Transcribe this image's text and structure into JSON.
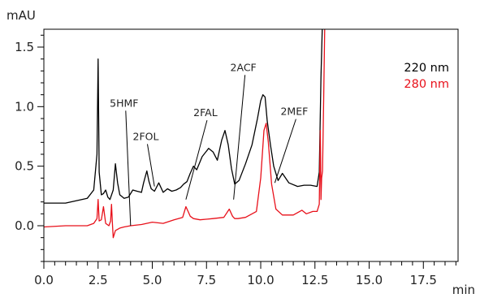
{
  "chart_data": {
    "type": "line",
    "title": "",
    "xlabel": "min",
    "ylabel": "mAU",
    "xlim": [
      0,
      19.1
    ],
    "ylim": [
      -0.3,
      1.65
    ],
    "x_ticks": [
      0.0,
      2.5,
      5.0,
      7.5,
      10.0,
      12.5,
      15.0,
      17.5
    ],
    "x_tick_labels": [
      "0.0",
      "2.5",
      "5.0",
      "7.5",
      "10.0",
      "12.5",
      "15.0",
      "17.5"
    ],
    "x_minor_step": 0.5,
    "y_ticks": [
      0.0,
      0.5,
      1.0,
      1.5
    ],
    "y_tick_labels": [
      "0.0",
      "0.5",
      "1.0",
      "1.5"
    ],
    "y_minor_step": 0.1,
    "grid": false,
    "legend_position": "top-right",
    "series": [
      {
        "name": "220 nm",
        "color": "#000000",
        "x": [
          0.0,
          1.0,
          2.0,
          2.3,
          2.45,
          2.5,
          2.55,
          2.65,
          2.75,
          2.85,
          2.95,
          3.05,
          3.2,
          3.3,
          3.4,
          3.5,
          3.7,
          3.9,
          4.1,
          4.3,
          4.5,
          4.6,
          4.75,
          4.85,
          4.95,
          5.1,
          5.3,
          5.5,
          5.7,
          5.9,
          6.1,
          6.3,
          6.45,
          6.6,
          6.75,
          6.9,
          7.05,
          7.3,
          7.6,
          7.8,
          8.0,
          8.2,
          8.35,
          8.5,
          8.65,
          8.8,
          9.0,
          9.3,
          9.6,
          9.85,
          10.0,
          10.1,
          10.2,
          10.3,
          10.45,
          10.6,
          10.8,
          11.0,
          11.3,
          11.7,
          12.0,
          12.3,
          12.6,
          12.7,
          12.78,
          12.84,
          12.9,
          12.95
        ],
        "y": [
          0.19,
          0.19,
          0.23,
          0.3,
          0.6,
          1.4,
          0.45,
          0.26,
          0.27,
          0.3,
          0.24,
          0.22,
          0.3,
          0.52,
          0.36,
          0.26,
          0.23,
          0.24,
          0.3,
          0.29,
          0.28,
          0.36,
          0.46,
          0.37,
          0.31,
          0.29,
          0.36,
          0.28,
          0.31,
          0.29,
          0.3,
          0.32,
          0.35,
          0.37,
          0.44,
          0.5,
          0.47,
          0.58,
          0.65,
          0.62,
          0.55,
          0.72,
          0.8,
          0.68,
          0.48,
          0.35,
          0.38,
          0.52,
          0.68,
          0.9,
          1.05,
          1.1,
          1.08,
          0.88,
          0.68,
          0.5,
          0.38,
          0.44,
          0.36,
          0.33,
          0.34,
          0.34,
          0.33,
          0.45,
          1.25,
          1.66,
          1.66,
          1.66
        ]
      },
      {
        "name": "280 nm",
        "color": "#e8101a",
        "x": [
          0.0,
          1.0,
          2.0,
          2.3,
          2.45,
          2.5,
          2.55,
          2.65,
          2.75,
          2.85,
          3.0,
          3.08,
          3.12,
          3.16,
          3.2,
          3.3,
          3.5,
          3.7,
          4.0,
          4.5,
          5.0,
          5.5,
          6.0,
          6.4,
          6.55,
          6.65,
          6.75,
          6.9,
          7.2,
          7.8,
          8.3,
          8.55,
          8.7,
          8.8,
          8.95,
          9.3,
          9.8,
          10.0,
          10.15,
          10.25,
          10.35,
          10.5,
          10.7,
          11.0,
          11.5,
          11.9,
          12.1,
          12.4,
          12.6,
          12.7,
          12.75,
          12.78,
          12.81,
          12.85,
          12.9,
          12.95,
          13.05,
          13.15
        ],
        "y": [
          -0.01,
          0.0,
          0.0,
          0.02,
          0.06,
          0.22,
          0.04,
          0.05,
          0.16,
          0.02,
          0.0,
          0.04,
          0.18,
          0.02,
          -0.1,
          -0.04,
          -0.02,
          -0.01,
          0.0,
          0.01,
          0.03,
          0.02,
          0.05,
          0.07,
          0.16,
          0.12,
          0.08,
          0.06,
          0.05,
          0.06,
          0.07,
          0.14,
          0.08,
          0.06,
          0.06,
          0.07,
          0.12,
          0.4,
          0.8,
          0.86,
          0.7,
          0.35,
          0.14,
          0.09,
          0.09,
          0.13,
          0.1,
          0.12,
          0.12,
          0.18,
          0.8,
          0.22,
          0.4,
          0.46,
          1.05,
          1.66,
          1.66,
          1.66
        ]
      }
    ],
    "annotations": [
      {
        "text": "5HMF",
        "x": 4.0,
        "y": 0.0
      },
      {
        "text": "2FOL",
        "x": 5.1,
        "y": 0.33
      },
      {
        "text": "2FAL",
        "x": 6.55,
        "y": 0.22
      },
      {
        "text": "2ACF",
        "x": 8.75,
        "y": 0.22
      },
      {
        "text": "2MEF",
        "x": 10.65,
        "y": 0.36
      }
    ]
  }
}
